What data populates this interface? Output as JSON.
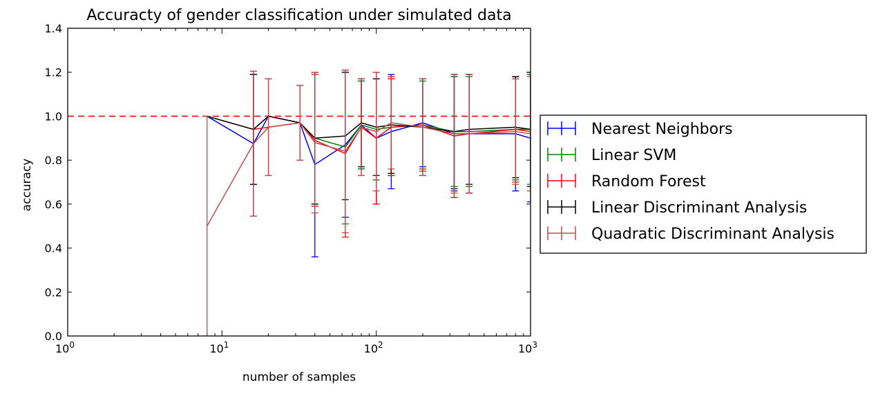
{
  "chart_data": {
    "type": "line",
    "title": "Accuracty of gender classification under simulated data",
    "xlabel": "number of samples",
    "ylabel": "accuracy",
    "xscale": "log",
    "xlim": [
      1,
      1000
    ],
    "ylim": [
      0,
      1.4
    ],
    "x_ticks": [
      {
        "value": 1,
        "base": "10",
        "exp": "0"
      },
      {
        "value": 10,
        "base": "10",
        "exp": "1"
      },
      {
        "value": 100,
        "base": "10",
        "exp": "2"
      },
      {
        "value": 1000,
        "base": "10",
        "exp": "3"
      }
    ],
    "y_ticks": [
      "0.0",
      "0.2",
      "0.4",
      "0.6",
      "0.8",
      "1.0",
      "1.2",
      "1.4"
    ],
    "reference_line": {
      "y": 1.0,
      "style": "dashed",
      "color": "#ff0000"
    },
    "x": [
      8,
      16,
      20,
      32,
      40,
      63,
      80,
      100,
      125,
      200,
      320,
      400,
      800,
      1000
    ],
    "series": [
      {
        "name": "Nearest Neighbors",
        "color": "#0000ff",
        "values": [
          1.0,
          0.875,
          1.0,
          0.97,
          0.78,
          0.87,
          0.96,
          0.9,
          0.93,
          0.97,
          0.92,
          0.92,
          0.92,
          0.9
        ],
        "errors": [
          0,
          0.33,
          0.0,
          0.0,
          0.42,
          0.33,
          0.2,
          0.3,
          0.26,
          0.2,
          0.26,
          0.27,
          0.26,
          0.29
        ]
      },
      {
        "name": "Linear SVM",
        "color": "#008000",
        "values": [
          1.0,
          0.94,
          1.0,
          0.97,
          0.9,
          0.86,
          0.96,
          0.94,
          0.95,
          0.96,
          0.93,
          0.93,
          0.94,
          0.94
        ],
        "errors": [
          0,
          0.25,
          0.0,
          0.0,
          0.3,
          0.35,
          0.2,
          0.23,
          0.22,
          0.2,
          0.25,
          0.25,
          0.23,
          0.25
        ]
      },
      {
        "name": "Random Forest",
        "color": "#ff0000",
        "values": [
          1.0,
          0.94,
          0.95,
          0.97,
          0.89,
          0.83,
          0.95,
          0.9,
          0.95,
          0.96,
          0.91,
          0.92,
          0.94,
          0.93
        ],
        "errors": [
          0,
          0.25,
          0.22,
          0.17,
          0.3,
          0.38,
          0.22,
          0.3,
          0.22,
          0.21,
          0.28,
          0.27,
          0.24,
          0.25
        ]
      },
      {
        "name": "Linear Discriminant Analysis",
        "color": "#000000",
        "values": [
          1.0,
          0.94,
          1.0,
          0.97,
          0.9,
          0.91,
          0.97,
          0.95,
          0.96,
          0.95,
          0.93,
          0.94,
          0.95,
          0.94
        ],
        "errors": [
          0,
          0.25,
          0.0,
          0.0,
          0.3,
          0.29,
          0.2,
          0.22,
          0.22,
          0.22,
          0.26,
          0.25,
          0.23,
          0.26
        ]
      },
      {
        "name": "Quadratic Discriminant Analysis",
        "color": "#bd4b4b",
        "values": [
          0.5,
          0.875,
          0.95,
          0.97,
          0.88,
          0.84,
          0.95,
          0.93,
          0.97,
          0.95,
          0.92,
          0.92,
          0.93,
          0.92
        ],
        "errors": [
          0.5,
          0.33,
          0.22,
          0.17,
          0.32,
          0.37,
          0.22,
          0.27,
          0.21,
          0.22,
          0.27,
          0.27,
          0.24,
          0.26
        ]
      }
    ],
    "legend": {
      "placement": "outside-right"
    },
    "grid": false
  }
}
